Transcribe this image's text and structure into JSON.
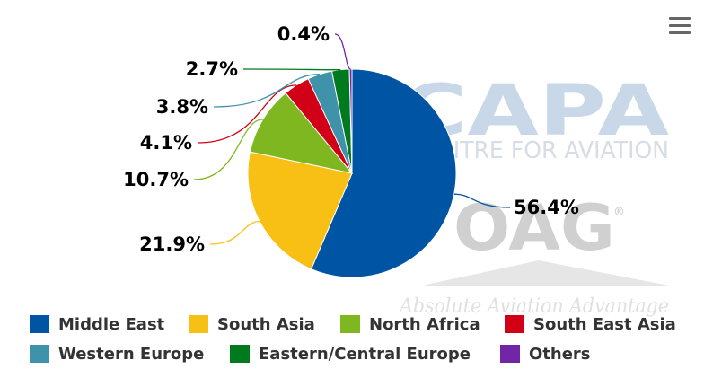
{
  "watermark": {
    "capa": "CAPA",
    "capa_sub": "CENTRE FOR AVIATION",
    "oag": "OAG",
    "oag_reg": "®",
    "oag_tag": "Absolute Aviation Advantage"
  },
  "menu_icon": "hamburger-menu-icon",
  "chart_data": {
    "type": "pie",
    "title": "",
    "slices": [
      {
        "name": "Middle East",
        "value": 56.4,
        "label": "56.4%",
        "color": "#0054a4"
      },
      {
        "name": "South Asia",
        "value": 21.9,
        "label": "21.9%",
        "color": "#f8bf14"
      },
      {
        "name": "North Africa",
        "value": 10.7,
        "label": "10.7%",
        "color": "#7fb720"
      },
      {
        "name": "South East Asia",
        "value": 4.1,
        "label": "4.1%",
        "color": "#d10016"
      },
      {
        "name": "Western Europe",
        "value": 3.8,
        "label": "3.8%",
        "color": "#3e92aa"
      },
      {
        "name": "Eastern/Central Europe",
        "value": 2.7,
        "label": "2.7%",
        "color": "#007a1f"
      },
      {
        "name": "Others",
        "value": 0.4,
        "label": "0.4%",
        "color": "#7125a7"
      }
    ],
    "legend_placement": "bottom"
  }
}
